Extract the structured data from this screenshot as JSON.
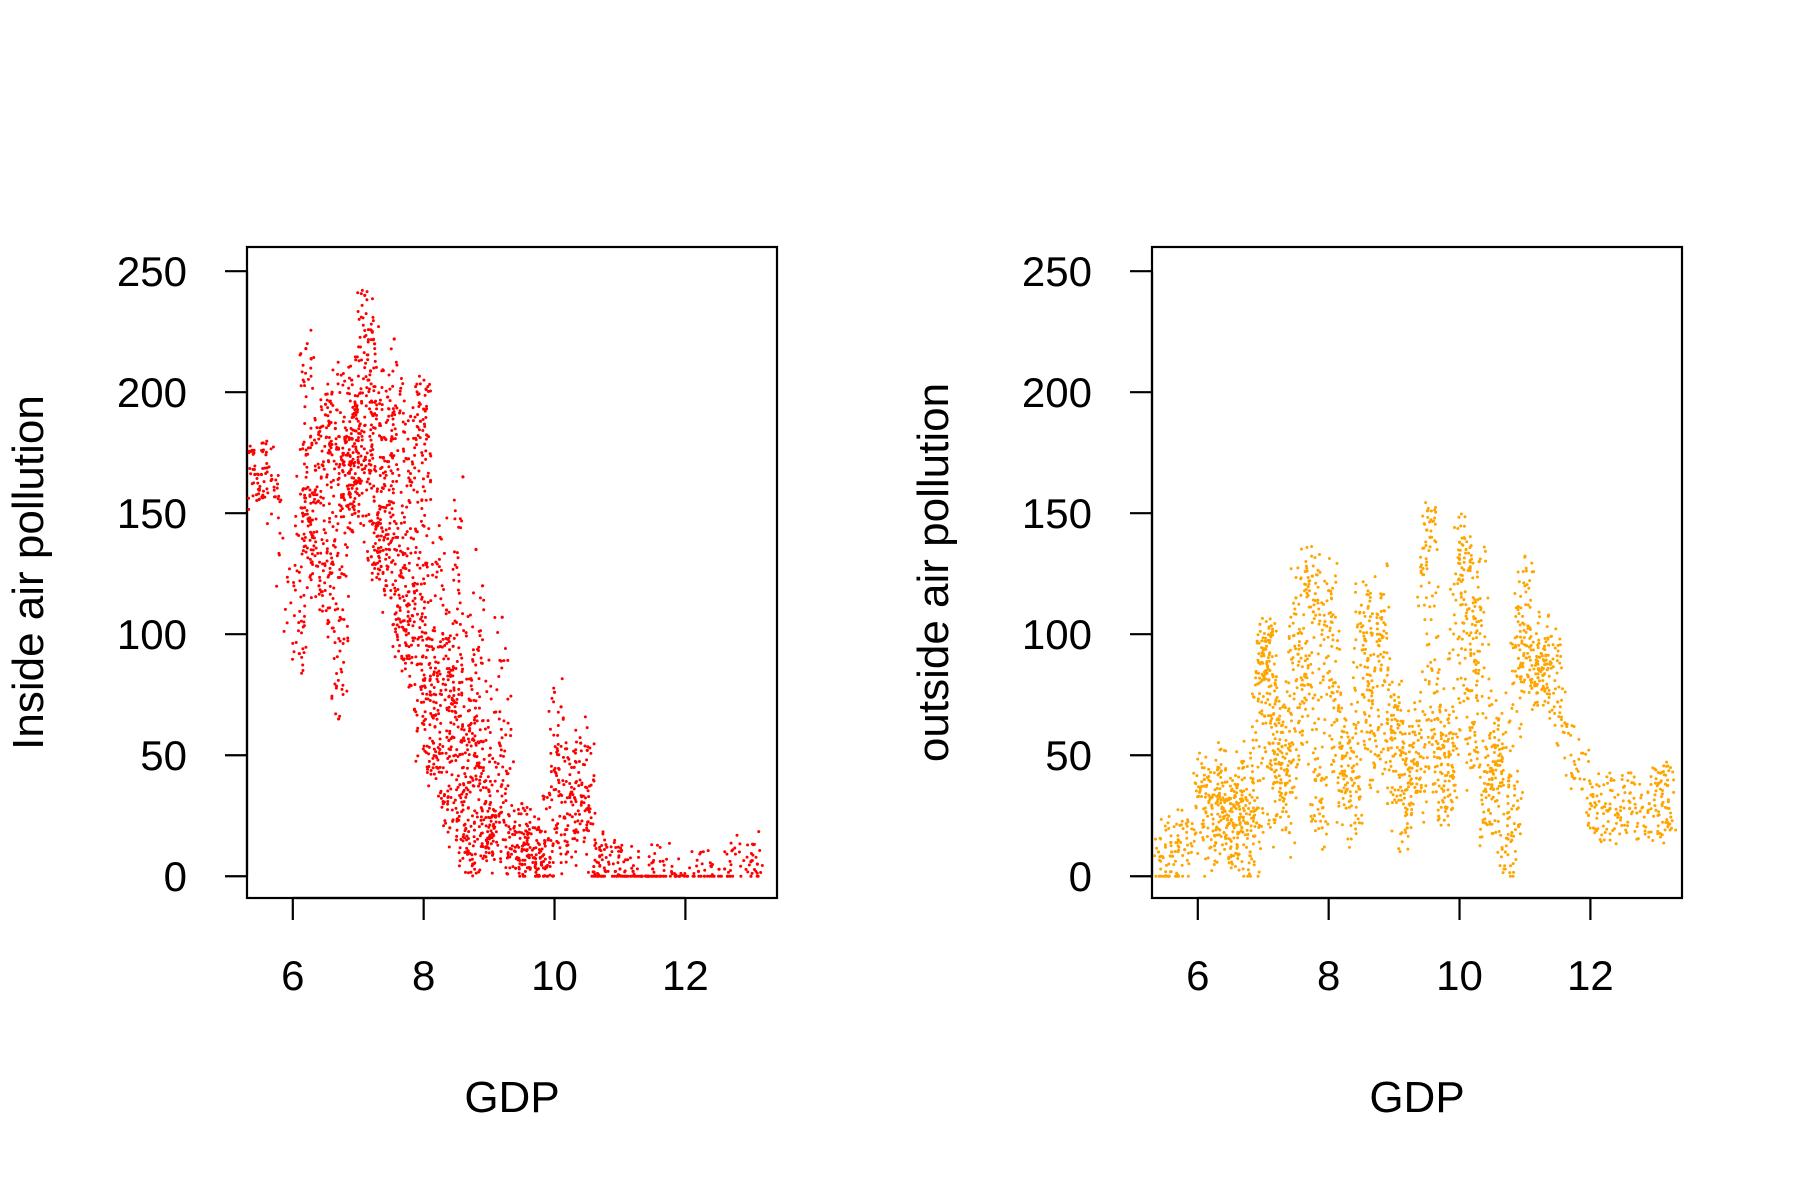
{
  "chart_data": [
    {
      "type": "scatter",
      "xlabel": "GDP",
      "ylabel": "Inside air pollution",
      "xlim": [
        5.3,
        13.4
      ],
      "ylim": [
        -9,
        260
      ],
      "xticks": [
        6,
        8,
        10,
        12
      ],
      "yticks": [
        0,
        50,
        100,
        150,
        200,
        250
      ],
      "grid": false,
      "legend": "none",
      "color": "#ff0000",
      "series": [
        {
          "points": [
            [
              5.42,
              166
            ],
            [
              5.52,
              166
            ],
            [
              5.68,
              164
            ],
            [
              6.1,
              92
            ],
            [
              6.15,
              150
            ],
            [
              6.2,
              218
            ],
            [
              6.25,
              148
            ],
            [
              6.3,
              140
            ],
            [
              6.4,
              120
            ],
            [
              6.45,
              170
            ],
            [
              6.5,
              195
            ],
            [
              6.55,
              105
            ],
            [
              6.6,
              200
            ],
            [
              6.65,
              185
            ],
            [
              6.7,
              65
            ],
            [
              6.75,
              125
            ],
            [
              6.8,
              180
            ],
            [
              6.85,
              160
            ],
            [
              6.9,
              205
            ],
            [
              6.95,
              150
            ],
            [
              7.0,
              180
            ],
            [
              7.05,
              170
            ],
            [
              7.1,
              240
            ],
            [
              7.15,
              205
            ],
            [
              7.2,
              132
            ],
            [
              7.25,
              220
            ],
            [
              7.3,
              150
            ],
            [
              7.35,
              128
            ],
            [
              7.4,
              140
            ],
            [
              7.45,
              198
            ],
            [
              7.5,
              115
            ],
            [
              7.55,
              222
            ],
            [
              7.6,
              140
            ],
            [
              7.65,
              105
            ],
            [
              7.7,
              102
            ],
            [
              7.75,
              90
            ],
            [
              7.8,
              190
            ],
            [
              7.85,
              120
            ],
            [
              7.9,
              60
            ],
            [
              7.95,
              188
            ],
            [
              8.0,
              193
            ],
            [
              8.05,
              98
            ],
            [
              8.1,
              75
            ],
            [
              8.15,
              55
            ],
            [
              8.2,
              45
            ],
            [
              8.25,
              140
            ],
            [
              8.3,
              30
            ],
            [
              8.35,
              110
            ],
            [
              8.4,
              20
            ],
            [
              8.45,
              95
            ],
            [
              8.5,
              15
            ],
            [
              8.55,
              80
            ],
            [
              8.6,
              165
            ],
            [
              8.65,
              10
            ],
            [
              8.7,
              60
            ],
            [
              8.75,
              5
            ],
            [
              8.8,
              135
            ],
            [
              8.85,
              45
            ],
            [
              8.9,
              120
            ],
            [
              8.95,
              8
            ],
            [
              9.0,
              35
            ],
            [
              9.1,
              25
            ],
            [
              9.2,
              107
            ],
            [
              9.3,
              18
            ],
            [
              9.4,
              12
            ],
            [
              9.5,
              30
            ],
            [
              9.6,
              8
            ],
            [
              9.7,
              20
            ],
            [
              9.8,
              5
            ],
            [
              9.9,
              15
            ],
            [
              10.0,
              76
            ],
            [
              10.1,
              70
            ],
            [
              10.2,
              10
            ],
            [
              10.3,
              45
            ],
            [
              10.4,
              55
            ],
            [
              10.5,
              52
            ],
            [
              10.6,
              4
            ],
            [
              10.8,
              12
            ],
            [
              11.0,
              3
            ],
            [
              11.2,
              2
            ],
            [
              11.5,
              3
            ],
            [
              11.8,
              1
            ],
            [
              12.2,
              2
            ],
            [
              12.6,
              3
            ],
            [
              13.0,
              6
            ],
            [
              13.1,
              5
            ]
          ]
        }
      ]
    },
    {
      "type": "scatter",
      "xlabel": "GDP",
      "ylabel": "outside air pollution",
      "xlim": [
        5.3,
        13.4
      ],
      "ylim": [
        -9,
        260
      ],
      "xticks": [
        6,
        8,
        10,
        12
      ],
      "yticks": [
        0,
        50,
        100,
        150,
        200,
        250
      ],
      "grid": false,
      "legend": "none",
      "color": "#ffa500",
      "series": [
        {
          "points": [
            [
              5.4,
              10
            ],
            [
              5.6,
              10
            ],
            [
              5.8,
              11
            ],
            [
              6.1,
              40
            ],
            [
              6.2,
              12
            ],
            [
              6.3,
              44
            ],
            [
              6.4,
              18
            ],
            [
              6.5,
              30
            ],
            [
              6.6,
              13
            ],
            [
              6.7,
              45
            ],
            [
              6.8,
              10
            ],
            [
              6.9,
              22
            ],
            [
              7.0,
              92
            ],
            [
              7.05,
              95
            ],
            [
              7.1,
              85
            ],
            [
              7.15,
              55
            ],
            [
              7.2,
              25
            ],
            [
              7.3,
              70
            ],
            [
              7.4,
              18
            ],
            [
              7.5,
              115
            ],
            [
              7.6,
              60
            ],
            [
              7.7,
              122
            ],
            [
              7.75,
              124
            ],
            [
              7.8,
              40
            ],
            [
              7.9,
              20
            ],
            [
              8.0,
              118
            ],
            [
              8.1,
              80
            ],
            [
              8.2,
              35
            ],
            [
              8.3,
              55
            ],
            [
              8.4,
              22
            ],
            [
              8.5,
              112
            ],
            [
              8.6,
              90
            ],
            [
              8.7,
              45
            ],
            [
              8.8,
              115
            ],
            [
              8.9,
              30
            ],
            [
              9.0,
              75
            ],
            [
              9.1,
              50
            ],
            [
              9.2,
              20
            ],
            [
              9.3,
              55
            ],
            [
              9.4,
              35
            ],
            [
              9.5,
              143
            ],
            [
              9.55,
              140
            ],
            [
              9.6,
              38
            ],
            [
              9.7,
              70
            ],
            [
              9.8,
              28
            ],
            [
              9.9,
              55
            ],
            [
              10.0,
              138
            ],
            [
              10.1,
              135
            ],
            [
              10.2,
              45
            ],
            [
              10.3,
              130
            ],
            [
              10.4,
              22
            ],
            [
              10.5,
              40
            ],
            [
              10.6,
              65
            ],
            [
              10.7,
              10
            ],
            [
              10.8,
              18
            ],
            [
              10.9,
              90
            ],
            [
              11.0,
              120
            ],
            [
              11.1,
              80
            ],
            [
              11.2,
              82
            ],
            [
              11.3,
              95
            ],
            [
              11.4,
              88
            ],
            [
              11.5,
              72
            ],
            [
              12.0,
              30
            ],
            [
              12.3,
              28
            ],
            [
              12.6,
              28
            ],
            [
              12.9,
              30
            ],
            [
              13.1,
              34
            ],
            [
              13.2,
              28
            ]
          ]
        }
      ]
    }
  ]
}
